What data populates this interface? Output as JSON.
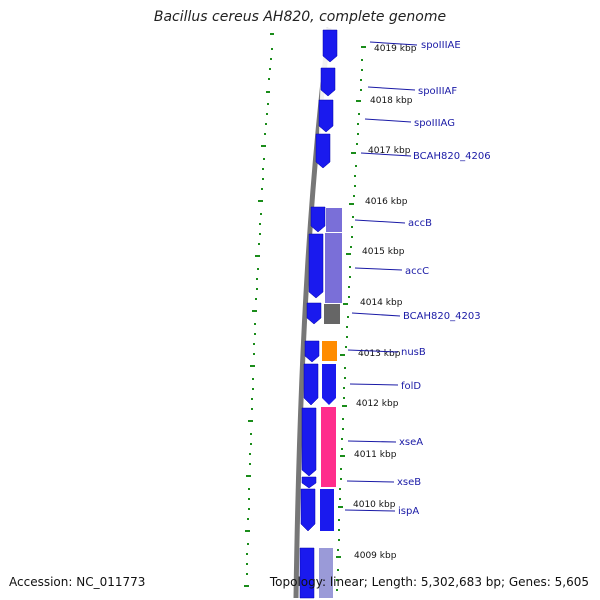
{
  "title": "Bacillus cereus AH820, complete genome",
  "footer": {
    "accession": "Accession: NC_011773",
    "summary": "Topology: linear; Length: 5,302,683 bp; Genes: 5,605"
  },
  "colors": {
    "gene_blue": "#1a1aee",
    "pale_purple": "#7a6fd8",
    "gray": "#666666",
    "orange": "#ff8c00",
    "pink": "#ff2d8c",
    "tick_green": "#1a8c1a",
    "label_blue": "#1a1aa6"
  },
  "kbp_ticks": [
    "4019 kbp",
    "4018 kbp",
    "4017 kbp",
    "4016 kbp",
    "4015 kbp",
    "4014 kbp",
    "4013 kbp",
    "4012 kbp",
    "4011 kbp",
    "4010 kbp",
    "4009 kbp"
  ],
  "genes": [
    "spoIIIAE",
    "spoIIIAF",
    "spoIIIAG",
    "BCAH820_4206",
    "accB",
    "accC",
    "BCAH820_4203",
    "nusB",
    "folD",
    "xseA",
    "xseB",
    "ispA"
  ]
}
